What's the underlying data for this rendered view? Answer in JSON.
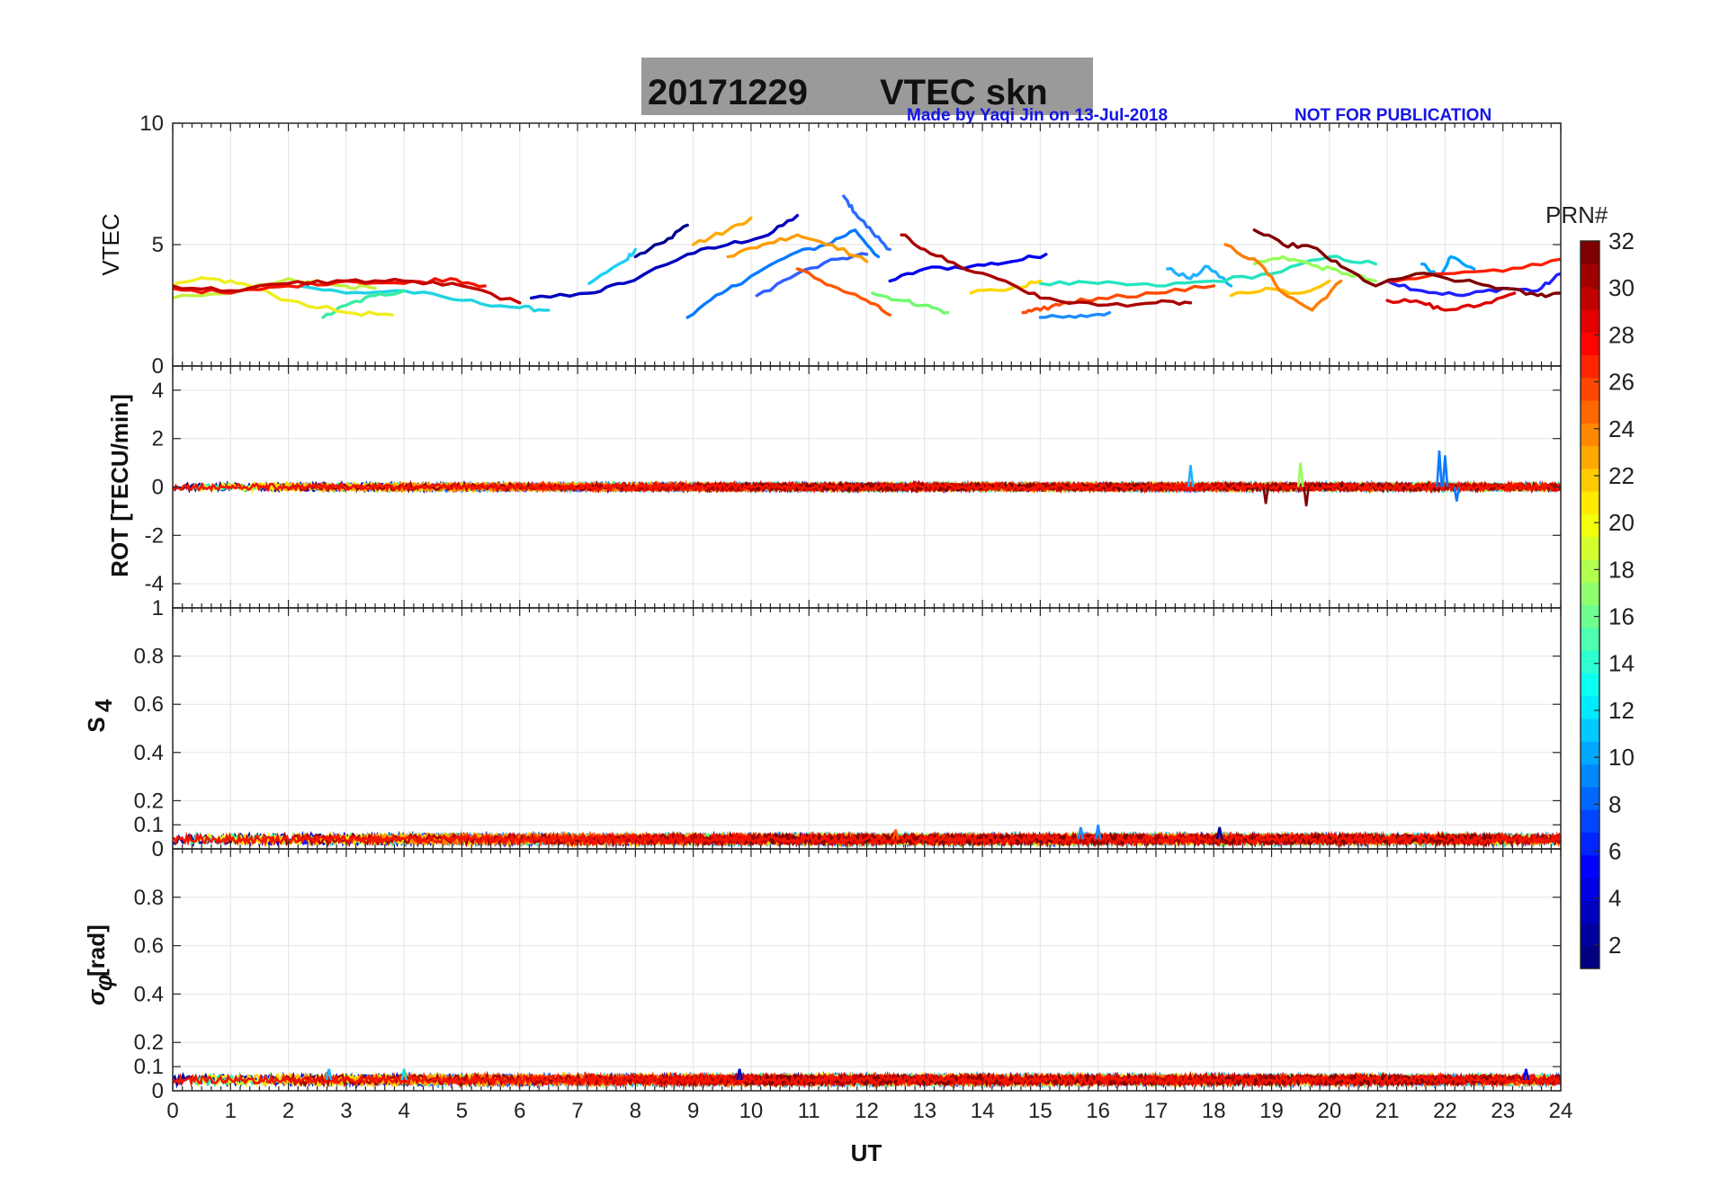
{
  "figure": {
    "title_date": "20171229",
    "title_text": "VTEC  skn",
    "credit_left": "Made by Yaqi Jin on 13-Jul-2018",
    "credit_right": "NOT FOR PUBLICATION",
    "colors": {
      "title_box": "#9a9a9a",
      "credit": "#1515e6",
      "grid": "#e3e3e3",
      "axis": "#262626"
    }
  },
  "chart_data": [
    {
      "type": "line",
      "name": "vtec",
      "ylabel": "VTEC",
      "x_range": [
        0,
        24
      ],
      "ylim": [
        0,
        10
      ],
      "y_ticks": [
        0,
        5,
        10
      ],
      "y_tick_labels": [
        "0",
        "5",
        "10"
      ],
      "grid": true,
      "series": [
        {
          "name": "PRN 1",
          "color": "#00008f",
          "x": [
            8.0,
            8.5,
            8.9
          ],
          "y": [
            4.5,
            5.1,
            5.8
          ]
        },
        {
          "name": "PRN 2",
          "color": "#0000c0",
          "x": [
            6.2,
            7.2,
            7.8,
            8.9,
            9.6,
            10.3,
            10.8
          ],
          "y": [
            2.8,
            3.0,
            3.4,
            4.6,
            5.0,
            5.4,
            6.2
          ]
        },
        {
          "name": "PRN 3",
          "color": "#0000ef",
          "x": [
            12.4,
            13.0,
            13.8,
            14.5,
            15.1
          ],
          "y": [
            3.5,
            4.0,
            4.1,
            4.3,
            4.6
          ]
        },
        {
          "name": "PRN 4",
          "color": "#1f1fff",
          "x": [
            21.0,
            21.6,
            22.3,
            23.0,
            23.6,
            24.0
          ],
          "y": [
            3.5,
            3.1,
            2.9,
            3.2,
            3.1,
            3.8
          ]
        },
        {
          "name": "PRN 6",
          "color": "#2f5fff",
          "x": [
            10.1,
            10.8,
            11.5,
            12.0
          ],
          "y": [
            2.9,
            3.8,
            4.4,
            4.6
          ]
        },
        {
          "name": "PRN 7",
          "color": "#2a6cff",
          "x": [
            11.6,
            11.8,
            12.1,
            12.4
          ],
          "y": [
            7.0,
            6.3,
            5.5,
            4.8
          ]
        },
        {
          "name": "PRN 8",
          "color": "#0a7aff",
          "x": [
            8.9,
            9.5,
            10.0,
            10.7,
            11.3,
            11.8,
            12.2
          ],
          "y": [
            2.0,
            3.0,
            3.7,
            4.6,
            5.0,
            5.6,
            4.5
          ]
        },
        {
          "name": "PRN 9",
          "color": "#1c8cff",
          "x": [
            15.0,
            15.6,
            16.2
          ],
          "y": [
            2.0,
            2.0,
            2.2
          ]
        },
        {
          "name": "PRN 10",
          "color": "#00a3ff",
          "x": [
            21.6,
            21.9,
            22.1,
            22.5
          ],
          "y": [
            4.2,
            3.7,
            4.5,
            4.0
          ]
        },
        {
          "name": "PRN 11",
          "color": "#21b2ff",
          "x": [
            17.2,
            17.6,
            17.9,
            18.3
          ],
          "y": [
            4.0,
            3.6,
            4.1,
            3.3
          ]
        },
        {
          "name": "PRN 12",
          "color": "#1ad1f4",
          "x": [
            7.2,
            7.8,
            8.0
          ],
          "y": [
            3.4,
            4.3,
            4.8
          ]
        },
        {
          "name": "PRN 13",
          "color": "#22d4e2",
          "x": [
            2.2,
            3.0,
            4.0,
            5.0,
            6.0,
            6.5
          ],
          "y": [
            3.3,
            3.0,
            3.1,
            2.7,
            2.4,
            2.3
          ]
        },
        {
          "name": "PRN 14",
          "color": "#26e4c0",
          "x": [
            15.0,
            16.0,
            17.0,
            18.0,
            19.0,
            20.0,
            20.8
          ],
          "y": [
            3.4,
            3.4,
            3.3,
            3.5,
            3.8,
            4.5,
            4.2
          ]
        },
        {
          "name": "PRN 15",
          "color": "#38eea0",
          "x": [
            2.6,
            3.0,
            3.5,
            4.0
          ],
          "y": [
            2.0,
            2.5,
            2.9,
            3.1
          ]
        },
        {
          "name": "PRN 16",
          "color": "#6ffb6d",
          "x": [
            12.1,
            12.6,
            13.0,
            13.4
          ],
          "y": [
            3.0,
            2.7,
            2.5,
            2.2
          ]
        },
        {
          "name": "PRN 17",
          "color": "#92ff58",
          "x": [
            18.7,
            19.2,
            19.8,
            20.3,
            20.8
          ],
          "y": [
            4.2,
            4.5,
            4.1,
            3.8,
            3.5
          ]
        },
        {
          "name": "PRN 18",
          "color": "#c2f23d",
          "x": [
            0.0,
            1.0,
            2.0,
            3.0,
            3.5
          ],
          "y": [
            2.8,
            3.0,
            3.6,
            3.3,
            3.2
          ]
        },
        {
          "name": "PRN 19",
          "color": "#f0ee1c",
          "x": [
            0.0,
            0.6,
            1.2,
            2.0,
            3.0,
            3.8
          ],
          "y": [
            3.3,
            3.6,
            3.4,
            2.7,
            2.2,
            2.1
          ]
        },
        {
          "name": "PRN 20",
          "color": "#ffd800",
          "x": [
            13.8,
            14.5,
            15.0
          ],
          "y": [
            3.0,
            3.2,
            3.5
          ]
        },
        {
          "name": "PRN 21",
          "color": "#ffc400",
          "x": [
            18.3,
            18.9,
            19.5,
            20.0
          ],
          "y": [
            2.9,
            3.2,
            3.0,
            3.5
          ]
        },
        {
          "name": "PRN 22",
          "color": "#ffa800",
          "x": [
            9.0,
            9.6,
            10.0
          ],
          "y": [
            5.0,
            5.6,
            6.1
          ]
        },
        {
          "name": "PRN 23",
          "color": "#ff9c00",
          "x": [
            9.6,
            10.2,
            10.8,
            11.4,
            12.0
          ],
          "y": [
            4.5,
            5.0,
            5.4,
            5.0,
            4.3
          ]
        },
        {
          "name": "PRN 24",
          "color": "#ff7d00",
          "x": [
            18.2,
            18.8,
            19.2,
            19.7,
            20.2
          ],
          "y": [
            5.0,
            4.2,
            3.0,
            2.3,
            3.5
          ]
        },
        {
          "name": "PRN 25",
          "color": "#ff5600",
          "x": [
            10.8,
            11.4,
            12.0,
            12.4
          ],
          "y": [
            4.0,
            3.3,
            2.7,
            2.1
          ]
        },
        {
          "name": "PRN 26",
          "color": "#ff4a00",
          "x": [
            14.7,
            15.0,
            15.4,
            16.0,
            17.0,
            18.0
          ],
          "y": [
            2.2,
            2.3,
            2.6,
            2.8,
            3.0,
            3.3
          ]
        },
        {
          "name": "PRN 27",
          "color": "#ff1e00",
          "x": [
            21.0,
            22.0,
            23.0,
            24.0
          ],
          "y": [
            3.5,
            3.8,
            3.9,
            4.4
          ]
        },
        {
          "name": "PRN 28",
          "color": "#f41400",
          "x": [
            0.0,
            1.0,
            2.0,
            3.0,
            4.0,
            4.8,
            5.4
          ],
          "y": [
            3.2,
            3.0,
            3.3,
            3.5,
            3.4,
            3.6,
            3.3
          ]
        },
        {
          "name": "PRN 29",
          "color": "#dc0000",
          "x": [
            21.0,
            21.6,
            22.0,
            22.6,
            23.2
          ],
          "y": [
            2.7,
            2.6,
            2.3,
            2.5,
            3.0
          ]
        },
        {
          "name": "PRN 30",
          "color": "#c40000",
          "x": [
            0.0,
            1.0,
            2.0,
            3.0,
            4.0,
            5.0,
            6.0
          ],
          "y": [
            3.3,
            3.1,
            3.4,
            3.5,
            3.5,
            3.3,
            2.6
          ]
        },
        {
          "name": "PRN 31",
          "color": "#aa0000",
          "x": [
            12.6,
            13.0,
            13.6,
            14.4,
            15.0,
            16.0,
            17.0,
            17.6
          ],
          "y": [
            5.4,
            4.8,
            4.1,
            3.5,
            2.8,
            2.5,
            2.6,
            2.6
          ]
        },
        {
          "name": "PRN 32",
          "color": "#800000",
          "x": [
            18.7,
            19.2,
            19.7,
            20.2,
            20.8,
            21.5,
            22.3,
            23.0,
            23.6,
            24.0
          ],
          "y": [
            5.6,
            5.0,
            4.9,
            4.1,
            3.3,
            3.8,
            3.5,
            3.2,
            2.9,
            3.0
          ]
        }
      ]
    },
    {
      "type": "line",
      "name": "rot",
      "ylabel": "ROT [TECU/min]",
      "x_range": [
        0,
        24
      ],
      "ylim": [
        -5,
        5
      ],
      "y_ticks": [
        -4,
        -2,
        0,
        2,
        4
      ],
      "y_tick_labels": [
        "-4",
        "-2",
        "0",
        "2",
        "4"
      ],
      "grid": true,
      "baseline": 0,
      "noise_amplitude": 0.15,
      "spikes": [
        {
          "x": 17.6,
          "y": 0.9,
          "color": "#21b2ff"
        },
        {
          "x": 18.9,
          "y": -0.7,
          "color": "#800000"
        },
        {
          "x": 19.5,
          "y": 1.0,
          "color": "#92ff58"
        },
        {
          "x": 19.6,
          "y": -0.8,
          "color": "#800000"
        },
        {
          "x": 21.9,
          "y": 1.5,
          "color": "#0a7aff"
        },
        {
          "x": 22.0,
          "y": 1.3,
          "color": "#0a7aff"
        },
        {
          "x": 22.2,
          "y": -0.6,
          "color": "#0a7aff"
        }
      ]
    },
    {
      "type": "line",
      "name": "s4",
      "ylabel": "S4",
      "ylabel_main": "S",
      "ylabel_sub": "4",
      "x_range": [
        0,
        24
      ],
      "ylim": [
        0,
        1
      ],
      "y_ticks": [
        0,
        0.1,
        0.2,
        0.4,
        0.6,
        0.8,
        1
      ],
      "y_tick_labels": [
        "0",
        "0.1",
        "0.2",
        "0.4",
        "0.6",
        "0.8",
        "1"
      ],
      "grid": true,
      "baseline": 0.04,
      "noise_amplitude": 0.02,
      "spikes": [
        {
          "x": 12.5,
          "y": 0.08,
          "color": "#ff5600"
        },
        {
          "x": 15.7,
          "y": 0.09,
          "color": "#1c8cff"
        },
        {
          "x": 16.0,
          "y": 0.1,
          "color": "#1c8cff"
        },
        {
          "x": 18.1,
          "y": 0.09,
          "color": "#00008f"
        }
      ]
    },
    {
      "type": "line",
      "name": "sigma_phi",
      "ylabel": "σφ [rad]",
      "ylabel_main": "σ",
      "ylabel_sub": "φ",
      "ylabel_unit": "[rad]",
      "x_range": [
        0,
        24
      ],
      "ylim": [
        0,
        1
      ],
      "y_ticks": [
        0,
        0.1,
        0.2,
        0.4,
        0.6,
        0.8
      ],
      "y_tick_labels": [
        "0",
        "0.1",
        "0.2",
        "0.4",
        "0.6",
        "0.8"
      ],
      "grid": true,
      "baseline": 0.045,
      "noise_amplitude": 0.02,
      "spikes": [
        {
          "x": 2.7,
          "y": 0.09,
          "color": "#21b2ff"
        },
        {
          "x": 4.0,
          "y": 0.09,
          "color": "#22d4e2"
        },
        {
          "x": 9.8,
          "y": 0.09,
          "color": "#0000c0"
        },
        {
          "x": 23.4,
          "y": 0.09,
          "color": "#0000ef"
        }
      ],
      "xlabel": "UT",
      "x_ticks": [
        0,
        1,
        2,
        3,
        4,
        5,
        6,
        7,
        8,
        9,
        10,
        11,
        12,
        13,
        14,
        15,
        16,
        17,
        18,
        19,
        20,
        21,
        22,
        23,
        24
      ],
      "x_tick_labels": [
        "0",
        "1",
        "2",
        "3",
        "4",
        "5",
        "6",
        "7",
        "8",
        "9",
        "10",
        "11",
        "12",
        "13",
        "14",
        "15",
        "16",
        "17",
        "18",
        "19",
        "20",
        "21",
        "22",
        "23",
        "24"
      ]
    }
  ],
  "colorbar": {
    "title": "PRN#",
    "range": [
      1,
      32
    ],
    "ticks": [
      2,
      4,
      6,
      8,
      10,
      12,
      14,
      16,
      18,
      20,
      22,
      24,
      26,
      28,
      30,
      32
    ],
    "tick_labels": [
      "2",
      "4",
      "6",
      "8",
      "10",
      "12",
      "14",
      "16",
      "18",
      "20",
      "22",
      "24",
      "26",
      "28",
      "30",
      "32"
    ],
    "colormap": "jet"
  }
}
